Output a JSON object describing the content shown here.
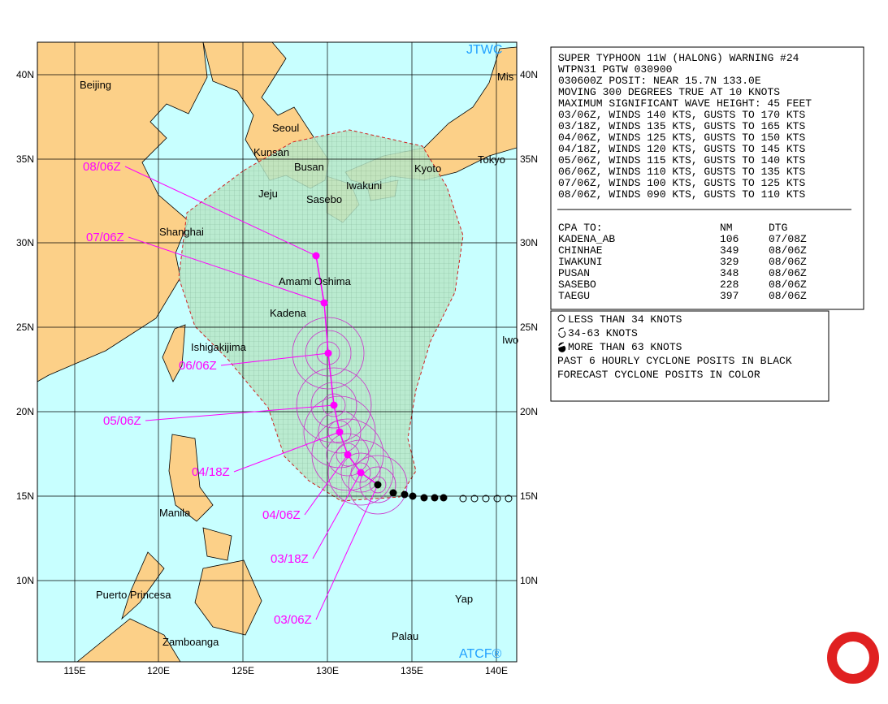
{
  "map": {
    "corner_top": "JTWC",
    "corner_bottom": "ATCF®",
    "lat_labels": [
      "40N",
      "35N",
      "30N",
      "25N",
      "20N",
      "15N",
      "10N"
    ],
    "lon_labels": [
      "115E",
      "120E",
      "125E",
      "130E",
      "135E",
      "140E"
    ],
    "places": [
      "Beijing",
      "Seoul",
      "Kunsan",
      "Busan",
      "Jeju",
      "Sasebo",
      "Iwakuni",
      "Kyoto",
      "Tokyo",
      "Mis",
      "Shanghai",
      "Amami Oshima",
      "Kadena",
      "Ishigakijima",
      "Iwo",
      "Manila",
      "Puerto Princesa",
      "Zamboanga",
      "Yap",
      "Palau"
    ],
    "times": [
      "08/06Z",
      "07/06Z",
      "06/06Z",
      "05/06Z",
      "04/18Z",
      "04/06Z",
      "03/18Z",
      "03/06Z"
    ]
  },
  "warning": {
    "lines": [
      "SUPER TYPHOON 11W (HALONG) WARNING #24",
      "WTPN31 PGTW 030900",
      "030600Z POSIT: NEAR 15.7N 133.0E",
      "MOVING 300 DEGREES TRUE AT 10 KNOTS",
      "MAXIMUM SIGNIFICANT WAVE HEIGHT: 45 FEET",
      "03/06Z, WINDS 140 KTS, GUSTS TO 170 KTS",
      "03/18Z, WINDS 135 KTS, GUSTS TO 165 KTS",
      "04/06Z, WINDS 125 KTS, GUSTS TO 150 KTS",
      "04/18Z, WINDS 120 KTS, GUSTS TO 145 KTS",
      "05/06Z, WINDS 115 KTS, GUSTS TO 140 KTS",
      "06/06Z, WINDS 110 KTS, GUSTS TO 135 KTS",
      "07/06Z, WINDS 100 KTS, GUSTS TO 125 KTS",
      "08/06Z, WINDS 090 KTS, GUSTS TO 110 KTS"
    ],
    "cpa_header": [
      "CPA TO:",
      "NM",
      "DTG"
    ],
    "cpa_rows": [
      [
        "KADENA_AB",
        "106",
        "07/08Z"
      ],
      [
        "CHINHAE",
        "349",
        "08/06Z"
      ],
      [
        "IWAKUNI",
        "329",
        "08/06Z"
      ],
      [
        "PUSAN",
        "348",
        "08/06Z"
      ],
      [
        "SASEBO",
        "228",
        "08/06Z"
      ],
      [
        "TAEGU",
        "397",
        "08/06Z"
      ]
    ]
  },
  "legend": {
    "lines": [
      "LESS THAN 34 KNOTS",
      "34-63 KNOTS",
      "MORE THAN 63 KNOTS",
      "PAST 6 HOURLY CYCLONE POSITS IN BLACK",
      "FORECAST CYCLONE POSITS IN COLOR"
    ]
  }
}
